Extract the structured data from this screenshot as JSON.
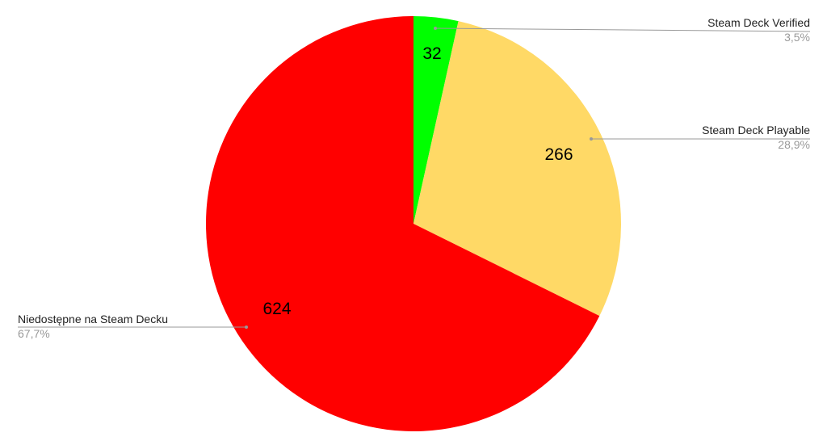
{
  "chart_data": {
    "type": "pie",
    "title": "",
    "start_angle_deg": 0,
    "direction": "clockwise",
    "slices": [
      {
        "label": "Steam Deck Verified",
        "value": 32,
        "percent_label": "3,5%",
        "color": "#00ff00"
      },
      {
        "label": "Steam Deck Playable",
        "value": 266,
        "percent_label": "28,9%",
        "color": "#ffd966"
      },
      {
        "label": "Niedostępne na Steam Decku",
        "value": 624,
        "percent_label": "67,7%",
        "color": "#ff0000"
      }
    ],
    "data_labels": "values",
    "legend": "labeled leader lines"
  }
}
